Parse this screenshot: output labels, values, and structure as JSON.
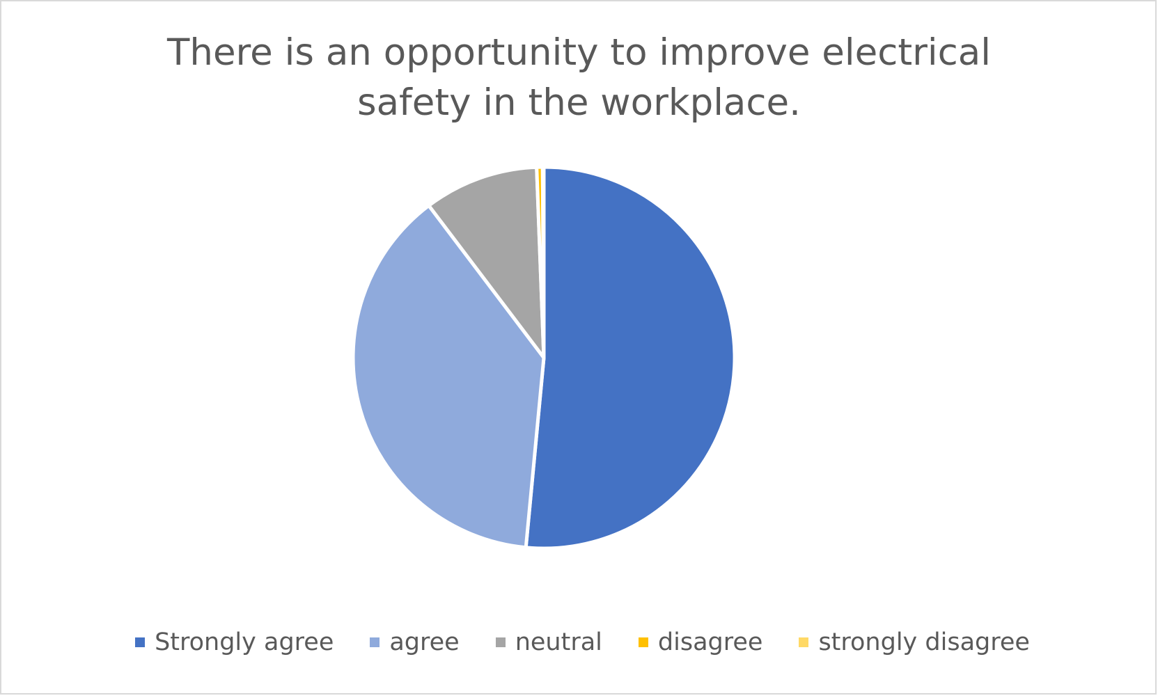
{
  "chart_data": {
    "type": "pie",
    "title": "There is an opportunity to improve electrical safety in the workplace.",
    "categories": [
      "Strongly agree",
      "agree",
      "neutral",
      "disagree",
      "strongly disagree"
    ],
    "values": [
      51.5,
      38.2,
      9.7,
      0.5,
      0.1
    ],
    "colors": [
      "#4472c4",
      "#8faadc",
      "#a5a5a5",
      "#ffc000",
      "#ffd966"
    ],
    "legend_position": "bottom",
    "start_angle": "top, clockwise"
  }
}
